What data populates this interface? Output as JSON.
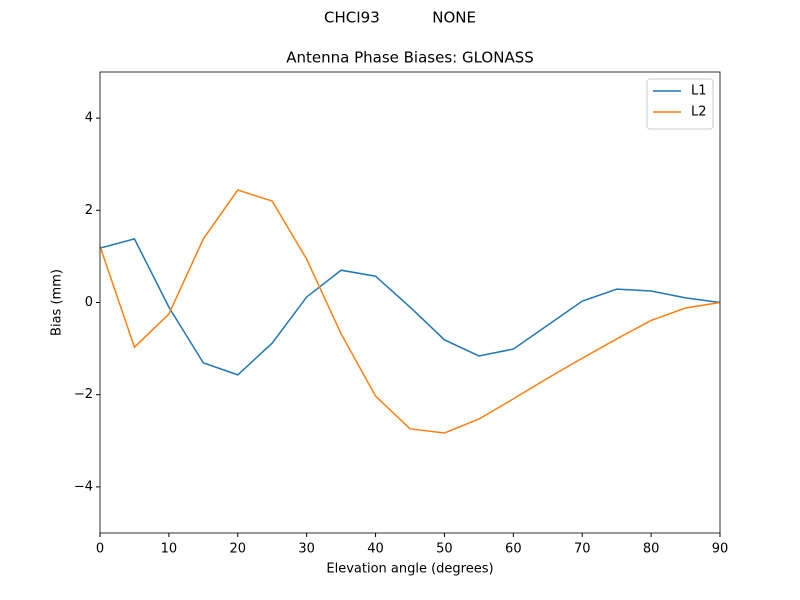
{
  "chart_data": {
    "type": "line",
    "suptitle": "CHCI93           NONE",
    "title": "Antenna Phase Biases: GLONASS",
    "xlabel": "Elevation angle (degrees)",
    "ylabel": "Bias (mm)",
    "x": [
      0,
      5,
      10,
      15,
      20,
      25,
      30,
      35,
      40,
      45,
      50,
      55,
      60,
      65,
      70,
      75,
      80,
      85,
      90
    ],
    "series": [
      {
        "name": "L1",
        "color": "#1f77b4",
        "values": [
          1.18,
          1.38,
          -0.1,
          -1.31,
          -1.57,
          -0.88,
          0.12,
          0.7,
          0.57,
          -0.1,
          -0.81,
          -1.16,
          -1.01,
          -0.49,
          0.03,
          0.29,
          0.25,
          0.1,
          0
        ]
      },
      {
        "name": "L2",
        "color": "#ff7f0e",
        "values": [
          1.22,
          -0.97,
          -0.25,
          1.38,
          2.44,
          2.2,
          0.94,
          -0.68,
          -2.03,
          -2.74,
          -2.83,
          -2.53,
          -2.09,
          -1.64,
          -1.21,
          -0.79,
          -0.39,
          -0.12,
          0
        ]
      }
    ],
    "xlim": [
      0,
      90
    ],
    "xticks": [
      0,
      10,
      20,
      30,
      40,
      50,
      60,
      70,
      80,
      90
    ],
    "ylim": [
      -5,
      5
    ],
    "yticks": [
      {
        "value": -4,
        "label": "−4"
      },
      {
        "value": -2,
        "label": "−2"
      },
      0,
      2,
      4
    ],
    "legend": "upper right"
  }
}
